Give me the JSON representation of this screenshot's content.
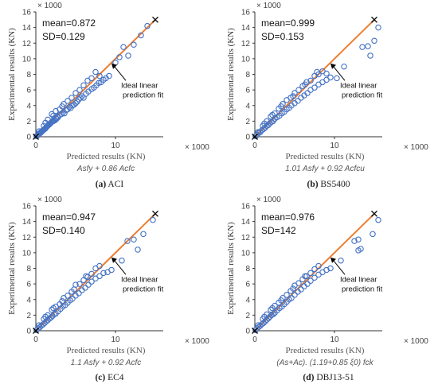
{
  "chart_data": [
    {
      "type": "scatter",
      "caption_letter": "(a)",
      "caption_name": "ACI",
      "ylabel": "Experimental results (KN)",
      "ylabel_unit": "× 1000",
      "xlabel": "Predicted results (KN)",
      "xlabel_unit": "× 1000",
      "formula": "Asfy + 0.86 Acfc",
      "mean_label": "mean=0.872",
      "sd_label": "SD=0.129",
      "annotation_line1": "Ideal linear",
      "annotation_line2": "prediction fit",
      "xlim": [
        0,
        16
      ],
      "ylim": [
        0,
        16
      ],
      "xticks": [
        "0",
        "10"
      ],
      "yticks": [
        "0",
        "2",
        "4",
        "6",
        "8",
        "10",
        "12",
        "14",
        "16"
      ],
      "ideal_fit": {
        "from": [
          0,
          0
        ],
        "to": [
          15,
          15
        ]
      },
      "points": [
        [
          0.1,
          0.1
        ],
        [
          0.2,
          0.15
        ],
        [
          0.3,
          0.3
        ],
        [
          0.4,
          0.35
        ],
        [
          0.5,
          0.5
        ],
        [
          0.6,
          0.5
        ],
        [
          0.7,
          0.65
        ],
        [
          0.8,
          0.7
        ],
        [
          0.9,
          0.85
        ],
        [
          1.0,
          0.9
        ],
        [
          1.1,
          1.0
        ],
        [
          1.2,
          1.05
        ],
        [
          1.3,
          1.2
        ],
        [
          1.4,
          1.3
        ],
        [
          1.5,
          1.4
        ],
        [
          1.6,
          1.5
        ],
        [
          1.7,
          1.6
        ],
        [
          1.8,
          1.7
        ],
        [
          1.9,
          1.8
        ],
        [
          2.0,
          1.9
        ],
        [
          2.1,
          2.0
        ],
        [
          2.2,
          2.0
        ],
        [
          2.3,
          2.2
        ],
        [
          2.4,
          2.1
        ],
        [
          2.5,
          2.4
        ],
        [
          2.6,
          2.3
        ],
        [
          2.7,
          2.6
        ],
        [
          2.8,
          2.5
        ],
        [
          3.0,
          2.8
        ],
        [
          3.2,
          2.9
        ],
        [
          3.4,
          3.1
        ],
        [
          3.6,
          3.0
        ],
        [
          3.8,
          3.4
        ],
        [
          4.0,
          3.5
        ],
        [
          4.2,
          3.8
        ],
        [
          4.4,
          3.7
        ],
        [
          4.6,
          4.0
        ],
        [
          4.8,
          4.1
        ],
        [
          5.0,
          4.3
        ],
        [
          5.2,
          4.5
        ],
        [
          5.4,
          4.8
        ],
        [
          5.6,
          5.0
        ],
        [
          5.8,
          5.2
        ],
        [
          6.0,
          5.0
        ],
        [
          6.3,
          5.5
        ],
        [
          6.6,
          5.8
        ],
        [
          7.0,
          6.1
        ],
        [
          7.3,
          6.3
        ],
        [
          7.6,
          6.6
        ],
        [
          7.9,
          6.9
        ],
        [
          8.2,
          7.0
        ],
        [
          8.5,
          7.3
        ],
        [
          8.8,
          7.5
        ],
        [
          9.2,
          7.8
        ],
        [
          10.0,
          9.5
        ],
        [
          10.5,
          10.2
        ],
        [
          11.0,
          11.5
        ],
        [
          11.6,
          10.4
        ],
        [
          12.3,
          11.8
        ],
        [
          13.2,
          13.0
        ],
        [
          14.0,
          14.2
        ],
        [
          1.5,
          2.2
        ],
        [
          2.0,
          2.9
        ],
        [
          2.5,
          3.3
        ],
        [
          3.0,
          3.5
        ],
        [
          3.5,
          4.2
        ],
        [
          4.5,
          5.0
        ],
        [
          5.0,
          5.6
        ],
        [
          5.5,
          6.0
        ],
        [
          6.0,
          6.6
        ],
        [
          7.0,
          7.5
        ],
        [
          7.5,
          8.3
        ],
        [
          8.0,
          7.8
        ],
        [
          0.4,
          0.7
        ],
        [
          1.0,
          1.4
        ],
        [
          1.2,
          1.8
        ],
        [
          2.2,
          2.7
        ],
        [
          3.3,
          3.9
        ],
        [
          4.0,
          4.6
        ],
        [
          6.5,
          7.2
        ]
      ],
      "ideal_marker": [
        15,
        15
      ]
    },
    {
      "type": "scatter",
      "caption_letter": "(b)",
      "caption_name": "BS5400",
      "ylabel": "Experimental results (KN)",
      "ylabel_unit": "× 1000",
      "xlabel": "Predicted results (KN)",
      "xlabel_unit": "× 1000",
      "formula": "1.01 Asfy + 0.92 Acfcu",
      "mean_label": "mean=0.999",
      "sd_label": "SD=0.153",
      "annotation_line1": "Ideal linear",
      "annotation_line2": "prediction fit",
      "xlim": [
        0,
        16
      ],
      "ylim": [
        0,
        16
      ],
      "xticks": [
        "0",
        "10"
      ],
      "yticks": [
        "0",
        "2",
        "4",
        "6",
        "8",
        "10",
        "12",
        "14",
        "16"
      ],
      "ideal_fit": {
        "from": [
          0,
          0
        ],
        "to": [
          15,
          15
        ]
      },
      "points": [
        [
          0.1,
          0.1
        ],
        [
          0.3,
          0.25
        ],
        [
          0.5,
          0.5
        ],
        [
          0.7,
          0.6
        ],
        [
          0.9,
          0.85
        ],
        [
          1.1,
          1.0
        ],
        [
          1.3,
          1.15
        ],
        [
          1.5,
          1.4
        ],
        [
          1.7,
          1.5
        ],
        [
          1.9,
          1.75
        ],
        [
          2.1,
          1.9
        ],
        [
          2.3,
          2.0
        ],
        [
          2.5,
          2.3
        ],
        [
          2.8,
          2.5
        ],
        [
          3.1,
          2.7
        ],
        [
          3.4,
          3.0
        ],
        [
          3.7,
          3.2
        ],
        [
          4.0,
          3.5
        ],
        [
          4.3,
          3.7
        ],
        [
          4.6,
          4.0
        ],
        [
          5.0,
          4.3
        ],
        [
          5.4,
          4.6
        ],
        [
          5.8,
          5.0
        ],
        [
          6.2,
          5.3
        ],
        [
          6.6,
          5.6
        ],
        [
          7.0,
          6.0
        ],
        [
          7.5,
          6.3
        ],
        [
          8.0,
          6.7
        ],
        [
          8.5,
          7.0
        ],
        [
          9.0,
          7.3
        ],
        [
          9.5,
          7.6
        ],
        [
          10.3,
          7.5
        ],
        [
          11.2,
          9.0
        ],
        [
          13.5,
          11.5
        ],
        [
          14.2,
          11.6
        ],
        [
          14.5,
          10.4
        ],
        [
          15.0,
          12.3
        ],
        [
          15.5,
          14.0
        ],
        [
          1.0,
          1.4
        ],
        [
          1.5,
          2.0
        ],
        [
          2.0,
          2.6
        ],
        [
          2.5,
          3.0
        ],
        [
          3.0,
          3.6
        ],
        [
          3.5,
          4.2
        ],
        [
          4.0,
          4.7
        ],
        [
          4.5,
          5.0
        ],
        [
          5.0,
          5.6
        ],
        [
          5.5,
          6.0
        ],
        [
          6.0,
          6.5
        ],
        [
          6.5,
          7.0
        ],
        [
          7.0,
          7.2
        ],
        [
          7.5,
          7.8
        ],
        [
          8.0,
          8.0
        ],
        [
          8.5,
          8.4
        ],
        [
          9.0,
          8.1
        ],
        [
          0.4,
          0.6
        ],
        [
          1.2,
          1.7
        ],
        [
          2.2,
          2.8
        ],
        [
          3.3,
          3.9
        ],
        [
          4.8,
          5.2
        ],
        [
          6.3,
          6.7
        ],
        [
          7.8,
          8.3
        ]
      ],
      "ideal_marker": [
        15,
        15
      ]
    },
    {
      "type": "scatter",
      "caption_letter": "(c)",
      "caption_name": "EC4",
      "ylabel": "Experimental results (KN)",
      "ylabel_unit": "× 1000",
      "xlabel": "Predicted results (KN)",
      "xlabel_unit": "× 1000",
      "formula": "1.1 Asfy + 0.92 Acfc",
      "mean_label": "mean=0.947",
      "sd_label": "SD=0.140",
      "annotation_line1": "Ideal linear",
      "annotation_line2": "prediction fit",
      "xlim": [
        0,
        16
      ],
      "ylim": [
        0,
        16
      ],
      "xticks": [
        "0",
        "10"
      ],
      "yticks": [
        "0",
        "2",
        "4",
        "6",
        "8",
        "10",
        "12",
        "14",
        "16"
      ],
      "ideal_fit": {
        "from": [
          0,
          0
        ],
        "to": [
          15,
          15
        ]
      },
      "points": [
        [
          0.1,
          0.1
        ],
        [
          0.3,
          0.3
        ],
        [
          0.5,
          0.45
        ],
        [
          0.7,
          0.65
        ],
        [
          0.9,
          0.8
        ],
        [
          1.1,
          1.0
        ],
        [
          1.3,
          1.2
        ],
        [
          1.5,
          1.35
        ],
        [
          1.7,
          1.55
        ],
        [
          1.9,
          1.7
        ],
        [
          2.1,
          1.9
        ],
        [
          2.3,
          2.1
        ],
        [
          2.5,
          2.2
        ],
        [
          2.8,
          2.5
        ],
        [
          3.1,
          2.8
        ],
        [
          3.4,
          3.1
        ],
        [
          3.7,
          3.3
        ],
        [
          4.0,
          3.6
        ],
        [
          4.3,
          3.9
        ],
        [
          4.6,
          4.1
        ],
        [
          5.0,
          4.5
        ],
        [
          5.4,
          4.8
        ],
        [
          5.8,
          5.2
        ],
        [
          6.2,
          5.5
        ],
        [
          6.6,
          5.9
        ],
        [
          7.0,
          6.3
        ],
        [
          7.5,
          6.7
        ],
        [
          8.0,
          7.0
        ],
        [
          8.5,
          7.4
        ],
        [
          9.0,
          7.5
        ],
        [
          9.5,
          7.8
        ],
        [
          10.8,
          9.0
        ],
        [
          11.5,
          11.5
        ],
        [
          12.3,
          11.7
        ],
        [
          12.8,
          10.4
        ],
        [
          13.5,
          12.4
        ],
        [
          14.7,
          14.2
        ],
        [
          1.0,
          1.5
        ],
        [
          1.5,
          2.0
        ],
        [
          2.0,
          2.7
        ],
        [
          2.5,
          3.1
        ],
        [
          3.0,
          3.4
        ],
        [
          3.5,
          4.2
        ],
        [
          4.0,
          4.5
        ],
        [
          4.5,
          5.0
        ],
        [
          5.0,
          5.9
        ],
        [
          5.5,
          6.0
        ],
        [
          6.0,
          6.5
        ],
        [
          6.5,
          6.9
        ],
        [
          7.0,
          7.3
        ],
        [
          7.5,
          8.0
        ],
        [
          8.0,
          8.3
        ],
        [
          0.4,
          0.7
        ],
        [
          1.2,
          1.8
        ],
        [
          2.2,
          2.9
        ],
        [
          3.3,
          3.8
        ],
        [
          4.8,
          5.3
        ],
        [
          6.3,
          7.0
        ]
      ],
      "ideal_marker": [
        15,
        15
      ]
    },
    {
      "type": "scatter",
      "caption_letter": "(d)",
      "caption_name": "DBJ13-51",
      "ylabel": "Experimental results (KN)",
      "ylabel_unit": "× 1000",
      "xlabel": "Predicted results (KN)",
      "xlabel_unit": "× 1000",
      "formula": "(As+Ac). (1.19+0.85 ξ0) fck",
      "mean_label": "mean=0.976",
      "sd_label": "SD=142",
      "annotation_line1": "Ideal linear",
      "annotation_line2": "prediction fit",
      "xlim": [
        0,
        16
      ],
      "ylim": [
        0,
        16
      ],
      "xticks": [
        "0",
        "10"
      ],
      "yticks": [
        "0",
        "2",
        "4",
        "6",
        "8",
        "10",
        "12",
        "14",
        "16"
      ],
      "ideal_fit": {
        "from": [
          0,
          0
        ],
        "to": [
          15,
          15
        ]
      },
      "points": [
        [
          0.1,
          0.1
        ],
        [
          0.3,
          0.3
        ],
        [
          0.5,
          0.5
        ],
        [
          0.7,
          0.65
        ],
        [
          0.9,
          0.85
        ],
        [
          1.1,
          1.0
        ],
        [
          1.3,
          1.2
        ],
        [
          1.5,
          1.4
        ],
        [
          1.7,
          1.6
        ],
        [
          1.9,
          1.8
        ],
        [
          2.1,
          2.0
        ],
        [
          2.3,
          2.1
        ],
        [
          2.5,
          2.3
        ],
        [
          2.8,
          2.6
        ],
        [
          3.1,
          2.9
        ],
        [
          3.4,
          3.1
        ],
        [
          3.7,
          3.4
        ],
        [
          4.0,
          3.7
        ],
        [
          4.3,
          4.0
        ],
        [
          4.6,
          4.2
        ],
        [
          5.0,
          4.6
        ],
        [
          5.4,
          5.0
        ],
        [
          5.8,
          5.3
        ],
        [
          6.2,
          5.7
        ],
        [
          6.6,
          6.0
        ],
        [
          7.0,
          6.4
        ],
        [
          7.5,
          6.8
        ],
        [
          8.0,
          7.2
        ],
        [
          8.5,
          7.5
        ],
        [
          9.0,
          7.8
        ],
        [
          9.5,
          8.0
        ],
        [
          10.8,
          9.0
        ],
        [
          12.5,
          11.5
        ],
        [
          13.0,
          11.7
        ],
        [
          13.3,
          10.5
        ],
        [
          13.0,
          10.3
        ],
        [
          14.8,
          12.4
        ],
        [
          15.5,
          14.2
        ],
        [
          1.0,
          1.5
        ],
        [
          1.5,
          2.1
        ],
        [
          2.0,
          2.7
        ],
        [
          2.5,
          3.2
        ],
        [
          3.0,
          3.6
        ],
        [
          3.5,
          4.2
        ],
        [
          4.0,
          4.6
        ],
        [
          4.5,
          5.1
        ],
        [
          5.0,
          5.8
        ],
        [
          5.5,
          6.1
        ],
        [
          6.0,
          6.6
        ],
        [
          6.5,
          7.0
        ],
        [
          7.0,
          7.4
        ],
        [
          7.5,
          7.9
        ],
        [
          8.0,
          8.3
        ],
        [
          0.4,
          0.7
        ],
        [
          1.2,
          1.8
        ],
        [
          2.2,
          2.9
        ],
        [
          3.3,
          3.9
        ],
        [
          4.8,
          5.4
        ],
        [
          6.3,
          7.0
        ]
      ],
      "ideal_marker": [
        15,
        15
      ]
    }
  ],
  "colors": {
    "points": "#4472c4",
    "fit_line": "#ed7d31",
    "axis": "#333333"
  }
}
